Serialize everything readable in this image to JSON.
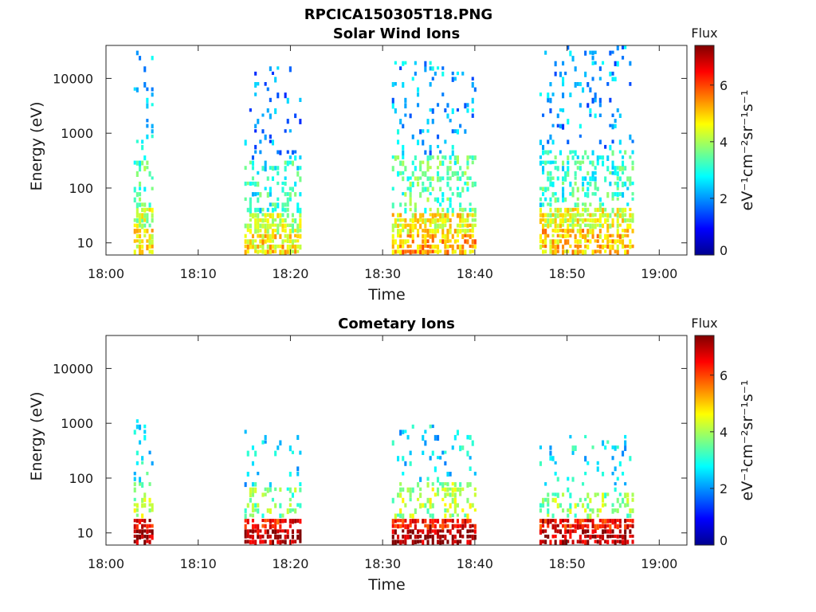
{
  "figure": {
    "title": "RPCICA150305T18.PNG"
  },
  "chart_data": [
    {
      "type": "heatmap",
      "title": "Solar Wind Ions",
      "xlabel": "Time",
      "ylabel": "Energy (eV)",
      "y_scale": "log",
      "xlim": [
        "18:00",
        "19:03"
      ],
      "ylim": [
        6,
        40000
      ],
      "x_ticks": [
        "18:00",
        "18:10",
        "18:20",
        "18:30",
        "18:40",
        "18:50",
        "19:00"
      ],
      "y_ticks": [
        "10",
        "100",
        "1000",
        "10000"
      ],
      "colorbar": {
        "label_top": "Flux",
        "unit_label": "eV⁻¹cm⁻²sr⁻¹s⁻¹",
        "range": [
          0,
          7.4
        ],
        "ticks": [
          "0",
          "2",
          "4",
          "6"
        ],
        "colormap": "jet"
      },
      "grid": false,
      "bursts": [
        {
          "start": "18:03",
          "end": "18:05",
          "low_flux": 4.2,
          "mid_flux": 3.3,
          "high_flux": 2.4,
          "max_energy": 30000
        },
        {
          "start": "18:15",
          "end": "18:21",
          "low_flux": 4.2,
          "mid_flux": 3.0,
          "high_flux": 2.0,
          "max_energy": 17000
        },
        {
          "start": "18:31",
          "end": "18:40",
          "low_flux": 4.6,
          "mid_flux": 3.4,
          "high_flux": 2.2,
          "max_energy": 22000
        },
        {
          "start": "18:47",
          "end": "18:57",
          "low_flux": 4.4,
          "mid_flux": 3.1,
          "high_flux": 2.1,
          "max_energy": 40000
        }
      ]
    },
    {
      "type": "heatmap",
      "title": "Cometary Ions",
      "xlabel": "Time",
      "ylabel": "Energy (eV)",
      "y_scale": "log",
      "xlim": [
        "18:00",
        "19:03"
      ],
      "ylim": [
        6,
        40000
      ],
      "x_ticks": [
        "18:00",
        "18:10",
        "18:20",
        "18:30",
        "18:40",
        "18:50",
        "19:00"
      ],
      "y_ticks": [
        "10",
        "100",
        "1000",
        "10000"
      ],
      "colorbar": {
        "label_top": "Flux",
        "unit_label": "eV⁻¹cm⁻²sr⁻¹s⁻¹",
        "range": [
          0,
          7.4
        ],
        "ticks": [
          "0",
          "2",
          "4",
          "6"
        ],
        "colormap": "jet"
      },
      "grid": false,
      "bursts": [
        {
          "start": "18:03",
          "end": "18:05",
          "low_flux": 6.6,
          "mid_flux": 4.0,
          "high_flux": 2.8,
          "max_energy": 1100
        },
        {
          "start": "18:15",
          "end": "18:21",
          "low_flux": 6.4,
          "mid_flux": 3.6,
          "high_flux": 2.6,
          "max_energy": 700
        },
        {
          "start": "18:31",
          "end": "18:40",
          "low_flux": 6.6,
          "mid_flux": 4.0,
          "high_flux": 2.6,
          "max_energy": 1000
        },
        {
          "start": "18:47",
          "end": "18:57",
          "low_flux": 6.5,
          "mid_flux": 3.8,
          "high_flux": 2.6,
          "max_energy": 600
        }
      ]
    }
  ]
}
